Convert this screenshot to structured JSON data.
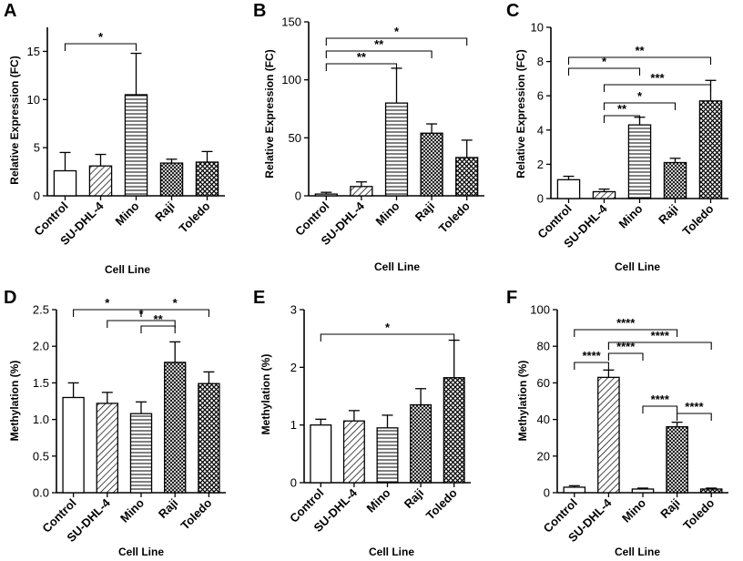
{
  "chart_data": [
    {
      "panel": "A",
      "type": "bar",
      "categories": [
        "Control",
        "SU-DHL-4",
        "Mino",
        "Raji",
        "Toledo"
      ],
      "values": [
        2.6,
        3.1,
        10.5,
        3.4,
        3.5
      ],
      "errors": [
        1.9,
        1.2,
        4.3,
        0.4,
        1.1
      ],
      "ylabel": "Relative Expression (FC)",
      "xlabel": "Cell Line",
      "ylim": [
        0,
        17.5
      ],
      "yticks": [
        "0",
        "5",
        "10",
        "15"
      ],
      "significance": [
        {
          "from": 0,
          "to": 2,
          "label": "*"
        }
      ]
    },
    {
      "panel": "B",
      "type": "bar",
      "categories": [
        "Control",
        "SU-DHL-4",
        "Mino",
        "Raji",
        "Toledo"
      ],
      "values": [
        1.5,
        8,
        80,
        54,
        33
      ],
      "errors": [
        1.5,
        4,
        30,
        8,
        15
      ],
      "ylabel": "Relative Expression (FC)",
      "xlabel": "Cell Line",
      "ylim": [
        0,
        150
      ],
      "yticks": [
        "0",
        "50",
        "100",
        "150"
      ],
      "significance": [
        {
          "from": 0,
          "to": 2,
          "label": "**"
        },
        {
          "from": 0,
          "to": 3,
          "label": "**"
        },
        {
          "from": 0,
          "to": 4,
          "label": "*"
        }
      ]
    },
    {
      "panel": "C",
      "type": "bar",
      "categories": [
        "Control",
        "SU-DHL-4",
        "Mino",
        "Raji",
        "Toledo"
      ],
      "values": [
        1.1,
        0.4,
        4.3,
        2.1,
        5.7
      ],
      "errors": [
        0.2,
        0.15,
        0.45,
        0.25,
        1.2
      ],
      "ylabel": "Relative Expression (FC)",
      "xlabel": "Cell Line",
      "ylim": [
        0,
        10
      ],
      "yticks": [
        "0",
        "2",
        "4",
        "6",
        "8",
        "10"
      ],
      "significance": [
        {
          "from": 0,
          "to": 4,
          "label": "**"
        },
        {
          "from": 0,
          "to": 2,
          "label": "*"
        },
        {
          "from": 1,
          "to": 4,
          "label": "***"
        },
        {
          "from": 1,
          "to": 3,
          "label": "*"
        },
        {
          "from": 1,
          "to": 2,
          "label": "**"
        }
      ]
    },
    {
      "panel": "D",
      "type": "bar",
      "categories": [
        "Control",
        "SU-DHL-4",
        "Mino",
        "Raji",
        "Toledo"
      ],
      "values": [
        1.3,
        1.22,
        1.08,
        1.78,
        1.49
      ],
      "errors": [
        0.2,
        0.15,
        0.16,
        0.28,
        0.16
      ],
      "ylabel": "Methylation (%)",
      "xlabel": "Cell Line",
      "ylim": [
        0,
        2.5
      ],
      "yticks": [
        "0.0",
        "0.5",
        "1.0",
        "1.5",
        "2.0",
        "2.5"
      ],
      "significance": [
        {
          "from": 0,
          "to": 2,
          "label": "*"
        },
        {
          "from": 2,
          "to": 4,
          "label": "*"
        },
        {
          "from": 1,
          "to": 3,
          "label": "*"
        },
        {
          "from": 2,
          "to": 3,
          "label": "**"
        }
      ]
    },
    {
      "panel": "E",
      "type": "bar",
      "categories": [
        "Control",
        "SU-DHL-4",
        "Mino",
        "Raji",
        "Toledo"
      ],
      "values": [
        1.0,
        1.07,
        0.95,
        1.35,
        1.82
      ],
      "errors": [
        0.1,
        0.18,
        0.22,
        0.28,
        0.65
      ],
      "ylabel": "Methylation (%)",
      "xlabel": "Cell Line",
      "ylim": [
        0,
        3
      ],
      "yticks": [
        "0",
        "1",
        "2",
        "3"
      ],
      "significance": [
        {
          "from": 0,
          "to": 4,
          "label": "*"
        }
      ]
    },
    {
      "panel": "F",
      "type": "bar",
      "categories": [
        "Control",
        "SU-DHL-4",
        "Mino",
        "Raji",
        "Toledo"
      ],
      "values": [
        3,
        63,
        2,
        36,
        2
      ],
      "errors": [
        0.8,
        4,
        0.5,
        2.5,
        0.5
      ],
      "ylabel": "Methylation (%)",
      "xlabel": "Cell Line",
      "ylim": [
        0,
        100
      ],
      "yticks": [
        "0",
        "20",
        "40",
        "60",
        "80",
        "100"
      ],
      "significance": [
        {
          "from": 0,
          "to": 3,
          "label": "****"
        },
        {
          "from": 1,
          "to": 4,
          "label": "****"
        },
        {
          "from": 0,
          "to": 1,
          "label": "****"
        },
        {
          "from": 1,
          "to": 2,
          "label": "****"
        },
        {
          "from": 2,
          "to": 3,
          "label": "****"
        },
        {
          "from": 3,
          "to": 4,
          "label": "****"
        }
      ]
    }
  ]
}
